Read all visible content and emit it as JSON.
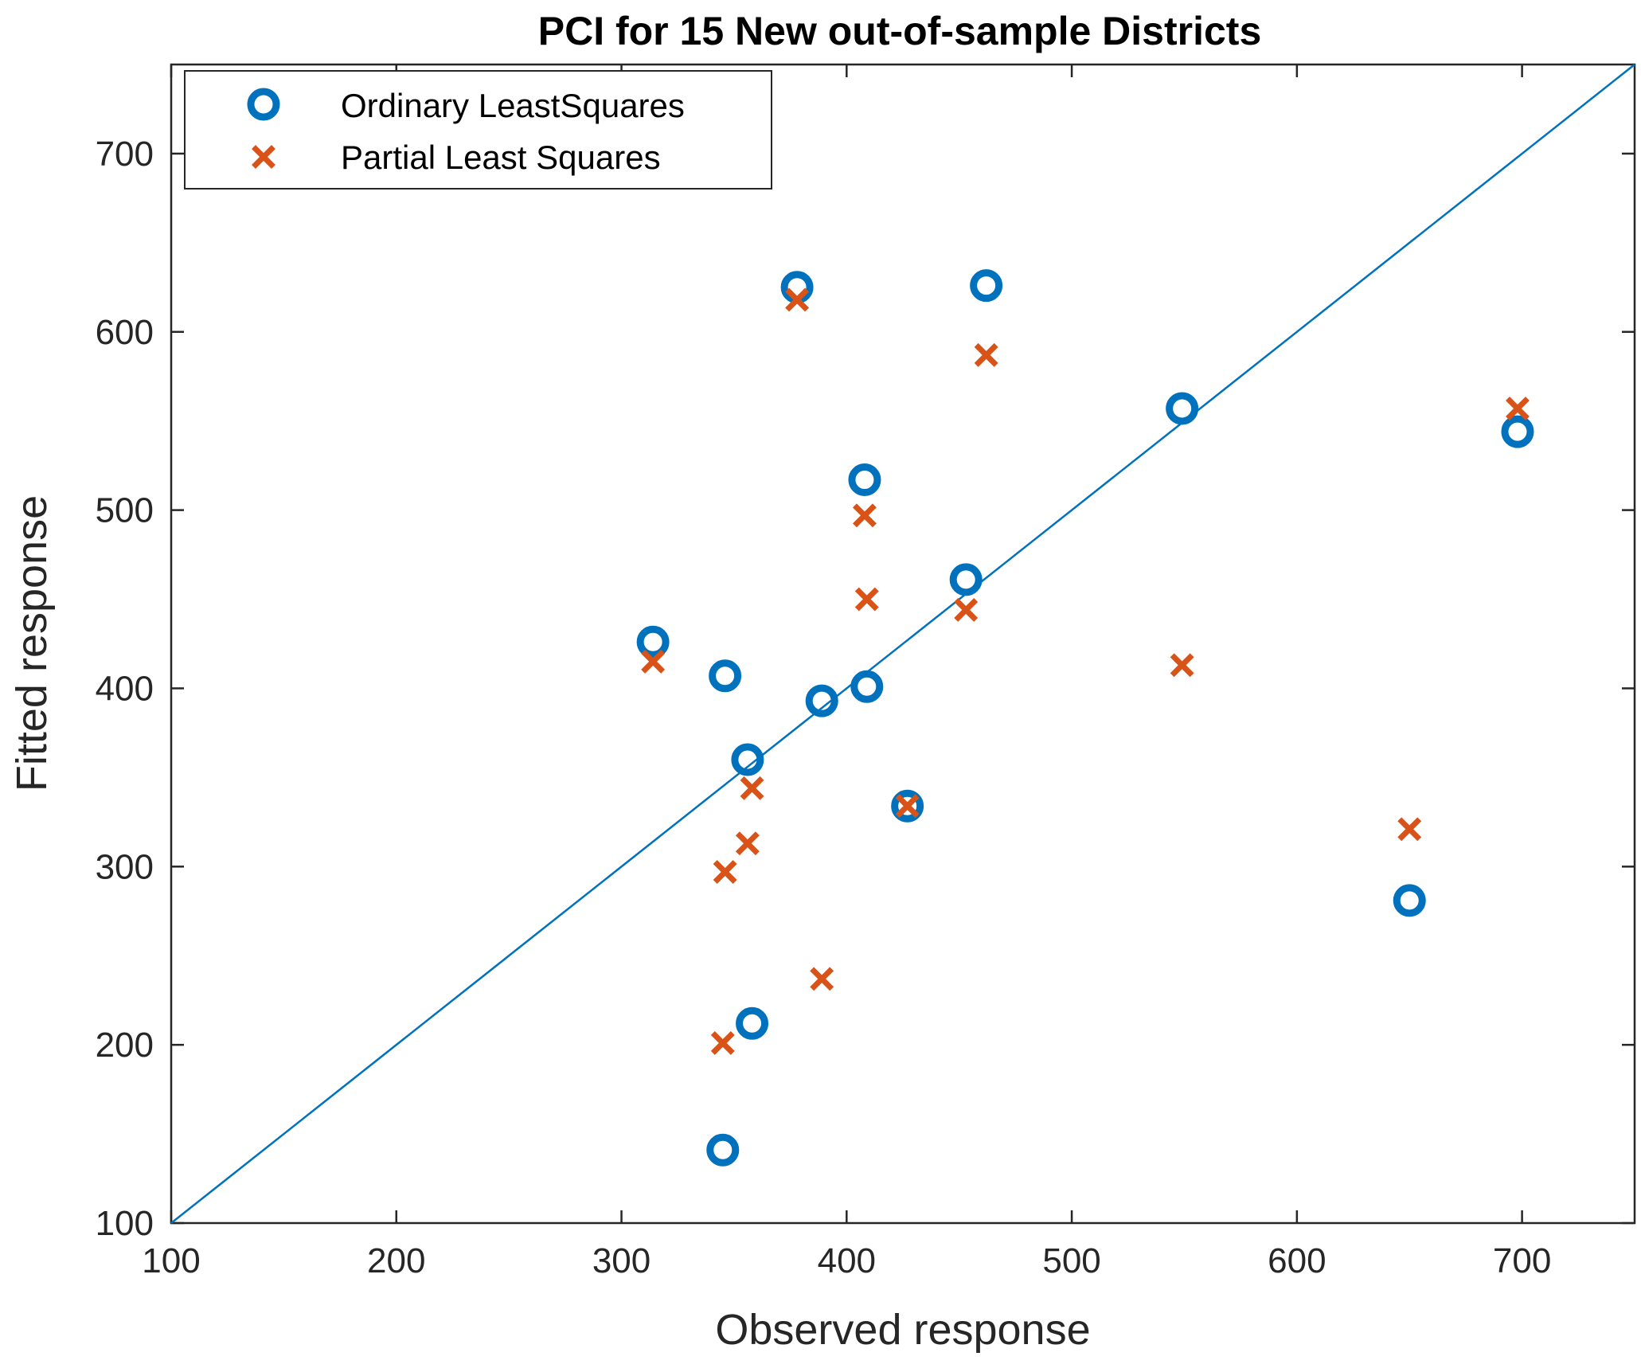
{
  "chart_data": {
    "type": "scatter",
    "title": "PCI for 15 New out-of-sample Districts",
    "xlabel": "Observed response",
    "ylabel": "Fitted response",
    "xlim": [
      100,
      750
    ],
    "ylim": [
      100,
      750
    ],
    "xticks": [
      100,
      200,
      300,
      400,
      500,
      600,
      700
    ],
    "yticks": [
      100,
      200,
      300,
      400,
      500,
      600,
      700
    ],
    "grid": false,
    "legend_position": "top-left",
    "reference_line": {
      "name": "y = x",
      "color": "#0072BD",
      "from": [
        100,
        100
      ],
      "to": [
        750,
        750
      ]
    },
    "series": [
      {
        "name": "Ordinary LeastSquares",
        "marker": "circle",
        "color": "#0072BD",
        "x": [
          378,
          462,
          549,
          698,
          408,
          453,
          314,
          346,
          389,
          409,
          356,
          427,
          650,
          358,
          345
        ],
        "y": [
          625,
          626,
          557,
          544,
          517,
          461,
          426,
          407,
          393,
          401,
          360,
          334,
          281,
          212,
          141
        ]
      },
      {
        "name": "Partial Least Squares",
        "marker": "x",
        "color": "#D95319",
        "x": [
          378,
          462,
          549,
          698,
          408,
          453,
          314,
          346,
          389,
          409,
          356,
          427,
          650,
          358,
          345
        ],
        "y": [
          618,
          587,
          413,
          557,
          497,
          444,
          415,
          297,
          237,
          450,
          313,
          334,
          321,
          344,
          201
        ]
      }
    ]
  }
}
